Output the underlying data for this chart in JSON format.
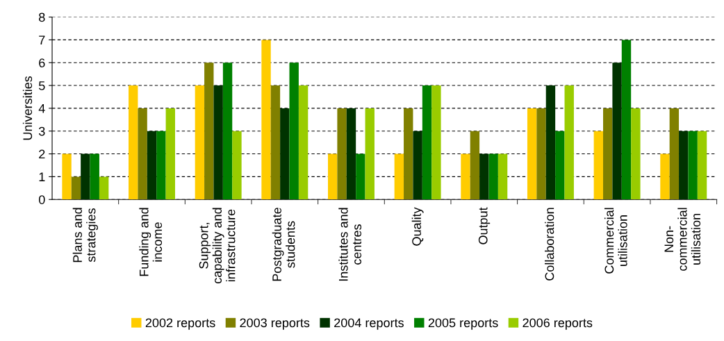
{
  "chart_data": {
    "type": "bar",
    "ylabel": "Universities",
    "categories": [
      "Plans and\nstrategies",
      "Funding and\nincome",
      "Support,\ncapability and\ninfrastructure",
      "Postgraduate\nstudents",
      "Institutes and\ncentres",
      "Quality",
      "Output",
      "Collaboration",
      "Commercial\nutilisation",
      "Non-\ncommercial\nutilisation"
    ],
    "series": [
      {
        "name": "2002 reports",
        "color": "#ffcc00",
        "values": [
          2,
          5,
          5,
          7,
          2,
          2,
          2,
          4,
          3,
          2
        ]
      },
      {
        "name": "2003 reports",
        "color": "#808000",
        "values": [
          1,
          4,
          6,
          5,
          4,
          4,
          3,
          4,
          4,
          4
        ]
      },
      {
        "name": "2004 reports",
        "color": "#003300",
        "values": [
          2,
          3,
          5,
          4,
          4,
          3,
          2,
          5,
          6,
          3
        ]
      },
      {
        "name": "2005 reports",
        "color": "#008000",
        "values": [
          2,
          3,
          6,
          6,
          2,
          5,
          2,
          3,
          7,
          3
        ]
      },
      {
        "name": "2006 reports",
        "color": "#99cc00",
        "values": [
          1,
          4,
          3,
          5,
          4,
          5,
          2,
          5,
          4,
          3
        ]
      }
    ],
    "ylim": [
      0,
      8
    ],
    "yticks": [
      0,
      1,
      2,
      3,
      4,
      5,
      6,
      7,
      8
    ],
    "grid": "y",
    "legend": "bottom"
  }
}
